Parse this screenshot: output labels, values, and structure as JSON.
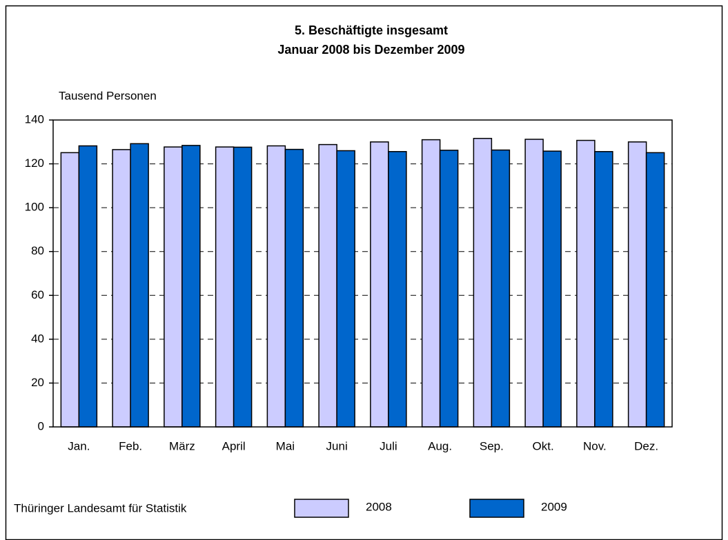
{
  "chart_data": {
    "type": "bar",
    "title": "5. Beschäftigte insgesamt",
    "subtitle": "Januar 2008 bis Dezember 2009",
    "y_label": "Tausend Personen",
    "source": "Thüringer Landesamt für Statistik",
    "categories": [
      "Jan.",
      "Feb.",
      "März",
      "April",
      "Mai",
      "Juni",
      "Juli",
      "Aug.",
      "Sep.",
      "Okt.",
      "Nov.",
      "Dez."
    ],
    "series": [
      {
        "name": "2008",
        "color": "#ccccff",
        "values": [
          125.1,
          126.5,
          127.7,
          127.7,
          128.2,
          128.8,
          130.0,
          131.0,
          131.6,
          131.2,
          130.7,
          130.0
        ]
      },
      {
        "name": "2009",
        "color": "#0066cc",
        "values": [
          128.2,
          129.2,
          128.4,
          127.6,
          126.6,
          126.0,
          125.6,
          126.2,
          126.3,
          125.8,
          125.6,
          125.1
        ]
      }
    ],
    "ylim": [
      0,
      140
    ],
    "yticks": [
      0,
      20,
      40,
      60,
      80,
      100,
      120,
      140
    ],
    "grid": true,
    "legend": "bottom"
  }
}
